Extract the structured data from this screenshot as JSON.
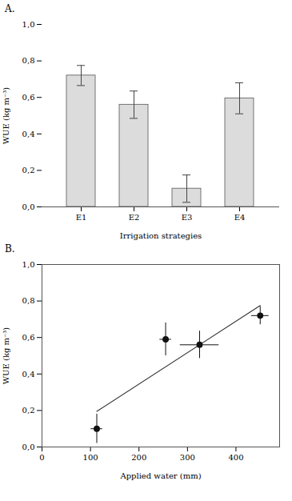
{
  "chart_data": [
    {
      "type": "bar",
      "title": "A.",
      "categories": [
        "E1",
        "E2",
        "E3",
        "E4"
      ],
      "values": [
        0.72,
        0.56,
        0.1,
        0.595
      ],
      "errors": [
        0.055,
        0.075,
        0.075,
        0.085
      ],
      "color": "#dcdcdc",
      "xlabel": "Irrigation strategies",
      "ylabel": "WUE (kg m⁻³)",
      "ylim": [
        0.0,
        1.0
      ],
      "yticks": [
        {
          "value": 0.0,
          "label": "0,0"
        },
        {
          "value": 0.2,
          "label": "0,2"
        },
        {
          "value": 0.4,
          "label": "0,4"
        },
        {
          "value": 0.6,
          "label": "0,6"
        },
        {
          "value": 0.8,
          "label": "0,8"
        },
        {
          "value": 1.0,
          "label": "1,0"
        }
      ]
    },
    {
      "type": "scatter",
      "title": "B.",
      "series": [
        {
          "type": "line",
          "color": "#333333",
          "line_style": "solid",
          "x": [
            113,
            450
          ],
          "values": [
            0.195,
            0.775
          ]
        },
        {
          "type": "scatter",
          "color": "#111111",
          "marker": "circle",
          "x": [
            113,
            255,
            325,
            450
          ],
          "values": [
            0.1,
            0.59,
            0.56,
            0.72
          ],
          "x_errors": [
            12,
            12,
            40,
            18
          ],
          "y_errors": [
            0.08,
            0.09,
            0.075,
            0.05
          ]
        }
      ],
      "xlabel": "Applied water (mm)",
      "ylabel": "WUE (kg m⁻³)",
      "xlim": [
        0,
        490
      ],
      "xticks": [
        0,
        100,
        200,
        300,
        400
      ],
      "ylim": [
        0.0,
        1.0
      ],
      "yticks": [
        {
          "value": 0.0,
          "label": "0,0"
        },
        {
          "value": 0.2,
          "label": "0,2"
        },
        {
          "value": 0.4,
          "label": "0,4"
        },
        {
          "value": 0.6,
          "label": "0,6"
        },
        {
          "value": 0.8,
          "label": "0,8"
        },
        {
          "value": 1.0,
          "label": "1,0"
        }
      ]
    }
  ]
}
